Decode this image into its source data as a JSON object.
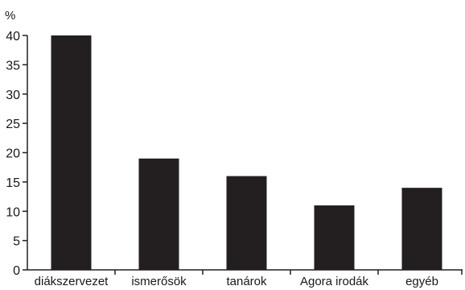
{
  "chart_data": {
    "type": "bar",
    "ylabel": "%",
    "categories": [
      "diákszervezet",
      "ismerősök",
      "tanárok",
      "Agora irodák",
      "egyéb"
    ],
    "values": [
      40,
      19,
      16,
      11,
      14
    ],
    "ylim": [
      0,
      40
    ],
    "yticks": [
      0,
      5,
      10,
      15,
      20,
      25,
      30,
      35,
      40
    ],
    "grid": false,
    "legend": "none",
    "bar_color": "#231f20",
    "axis_color": "#231f20"
  }
}
